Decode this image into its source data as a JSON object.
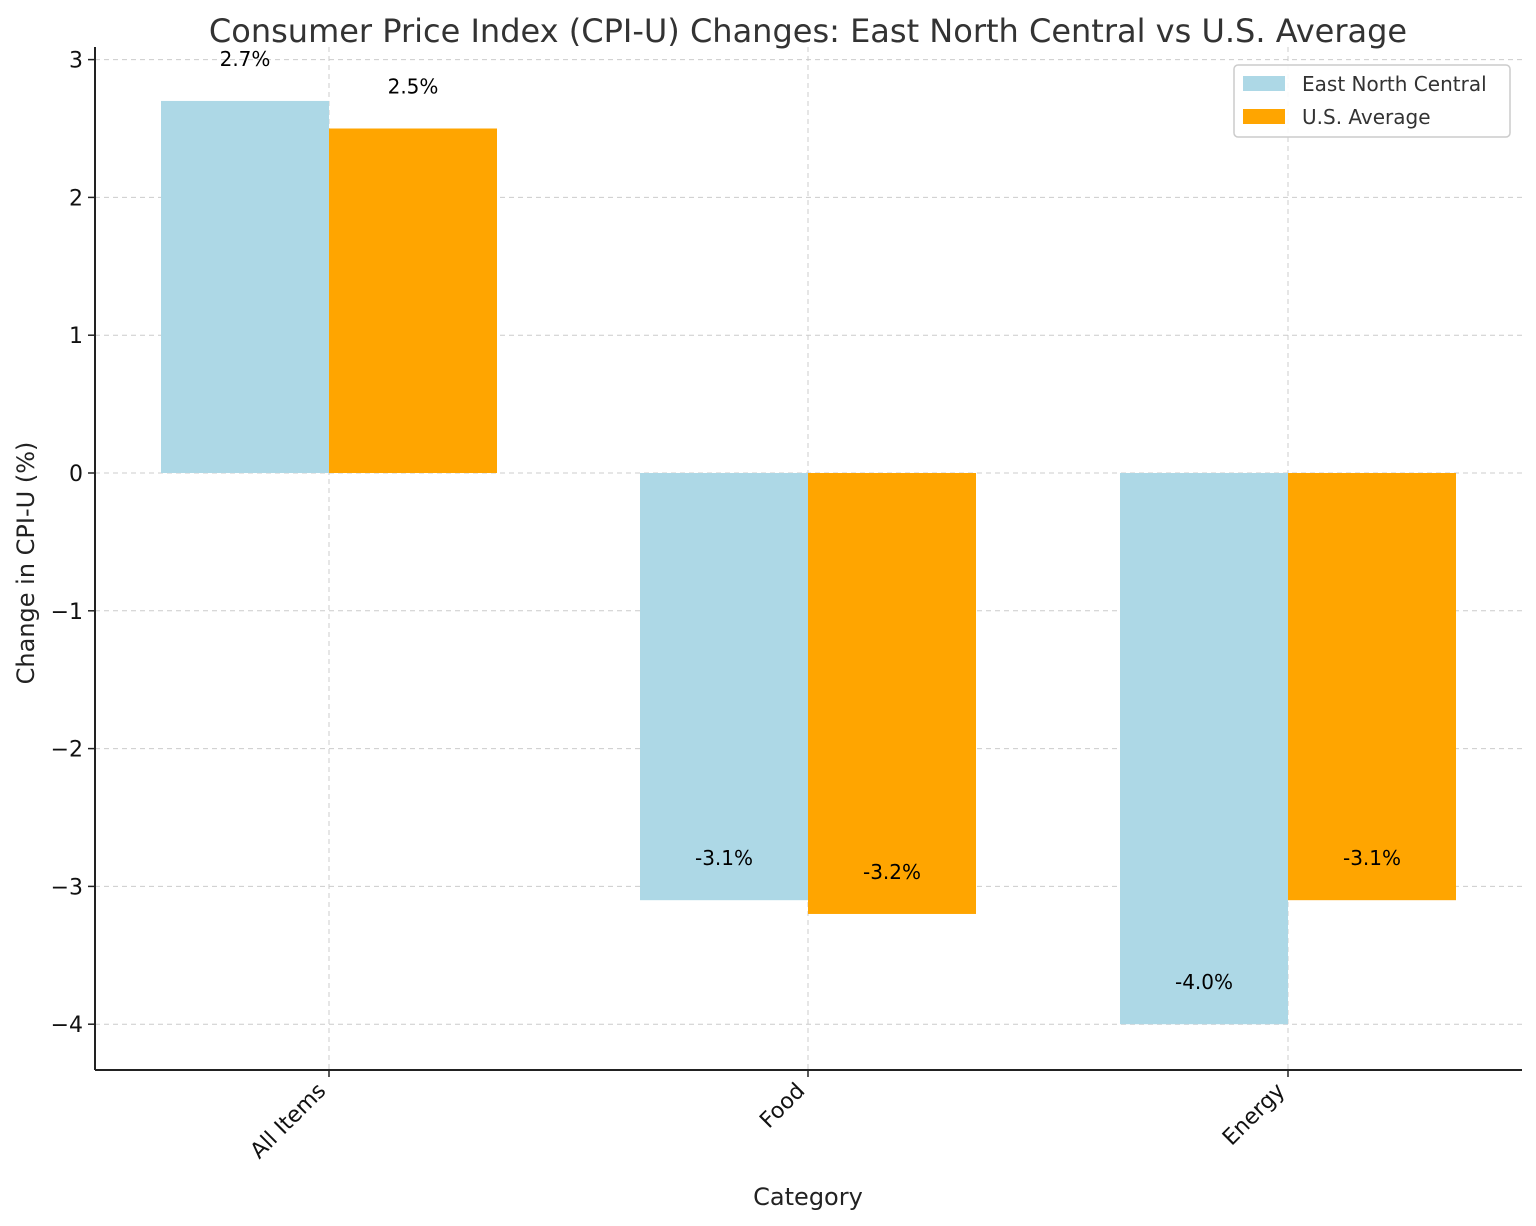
{
  "chart_data": {
    "type": "bar",
    "title": "Consumer Price Index (CPI-U) Changes: East North Central vs U.S. Average",
    "xlabel": "Category",
    "ylabel": "Change in CPI-U (%)",
    "categories": [
      "All Items",
      "Food",
      "Energy"
    ],
    "series": [
      {
        "name": "East North Central",
        "color": "#add8e6",
        "values": [
          2.7,
          -3.1,
          -4.0
        ],
        "labels": [
          "2.7%",
          "-3.1%",
          "-4.0%"
        ]
      },
      {
        "name": "U.S. Average",
        "color": "#ffa500",
        "values": [
          2.5,
          -3.2,
          -3.1
        ],
        "labels": [
          "2.5%",
          "-3.2%",
          "-3.1%"
        ]
      }
    ],
    "ylim": [
      -4.33,
      3.1
    ],
    "yticks": [
      3,
      2,
      1,
      0,
      -1,
      -2,
      -3,
      -4
    ],
    "ytick_labels": [
      "3",
      "2",
      "1",
      "0",
      "−1",
      "−2",
      "−3",
      "−4"
    ],
    "grid": true,
    "legend": "top-right",
    "x_tick_rotation_deg": 45
  }
}
